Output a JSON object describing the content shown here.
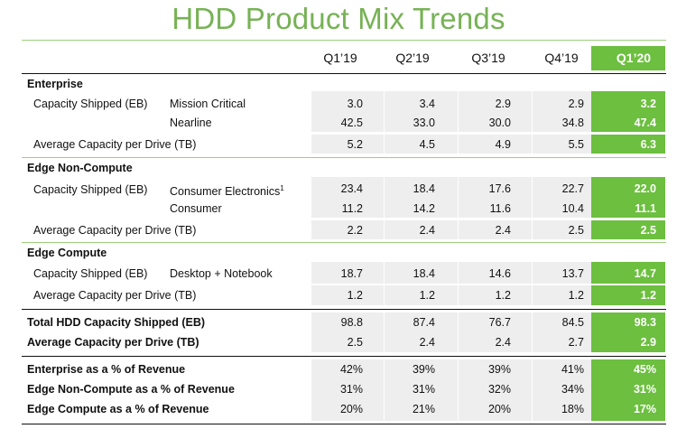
{
  "title": "HDD Product Mix Trends",
  "colors": {
    "accent_green": "#6cbf3f",
    "title_green": "#77b255",
    "row_gray": "#eeeeee"
  },
  "columns": [
    "Q1’19",
    "Q2’19",
    "Q3’19",
    "Q4’19",
    "Q1’20"
  ],
  "enterprise": {
    "heading": "Enterprise",
    "capacity_label": "Capacity Shipped (EB)",
    "rows": [
      {
        "label": "Mission Critical",
        "values": [
          "3.0",
          "3.4",
          "2.9",
          "2.9",
          "3.2"
        ]
      },
      {
        "label": "Nearline",
        "values": [
          "42.5",
          "33.0",
          "30.0",
          "34.8",
          "47.4"
        ]
      }
    ],
    "avg": {
      "label": "Average Capacity per Drive (TB)",
      "values": [
        "5.2",
        "4.5",
        "4.9",
        "5.5",
        "6.3"
      ]
    }
  },
  "edge_noncompute": {
    "heading": "Edge Non-Compute",
    "capacity_label": "Capacity Shipped (EB)",
    "rows": [
      {
        "label": "Consumer Electronics",
        "sup": "1",
        "values": [
          "23.4",
          "18.4",
          "17.6",
          "22.7",
          "22.0"
        ]
      },
      {
        "label": "Consumer",
        "values": [
          "11.2",
          "14.2",
          "11.6",
          "10.4",
          "11.1"
        ]
      }
    ],
    "avg": {
      "label": "Average Capacity per Drive (TB)",
      "values": [
        "2.2",
        "2.4",
        "2.4",
        "2.5",
        "2.5"
      ]
    }
  },
  "edge_compute": {
    "heading": "Edge Compute",
    "capacity_label": "Capacity Shipped (EB)",
    "rows": [
      {
        "label": "Desktop + Notebook",
        "values": [
          "18.7",
          "18.4",
          "14.6",
          "13.7",
          "14.7"
        ]
      }
    ],
    "avg": {
      "label": "Average Capacity per Drive (TB)",
      "values": [
        "1.2",
        "1.2",
        "1.2",
        "1.2",
        "1.2"
      ]
    }
  },
  "totals": [
    {
      "label": "Total  HDD Capacity Shipped (EB)",
      "values": [
        "98.8",
        "87.4",
        "76.7",
        "84.5",
        "98.3"
      ]
    },
    {
      "label": "Average Capacity per Drive (TB)",
      "values": [
        "2.5",
        "2.4",
        "2.4",
        "2.7",
        "2.9"
      ]
    }
  ],
  "revenue": [
    {
      "label": "Enterprise as a % of Revenue",
      "values": [
        "42%",
        "39%",
        "39%",
        "41%",
        "45%"
      ]
    },
    {
      "label": "Edge Non-Compute as a % of Revenue",
      "values": [
        "31%",
        "31%",
        "32%",
        "34%",
        "31%"
      ]
    },
    {
      "label": "Edge Compute as a % of Revenue",
      "values": [
        "20%",
        "21%",
        "20%",
        "18%",
        "17%"
      ]
    }
  ]
}
